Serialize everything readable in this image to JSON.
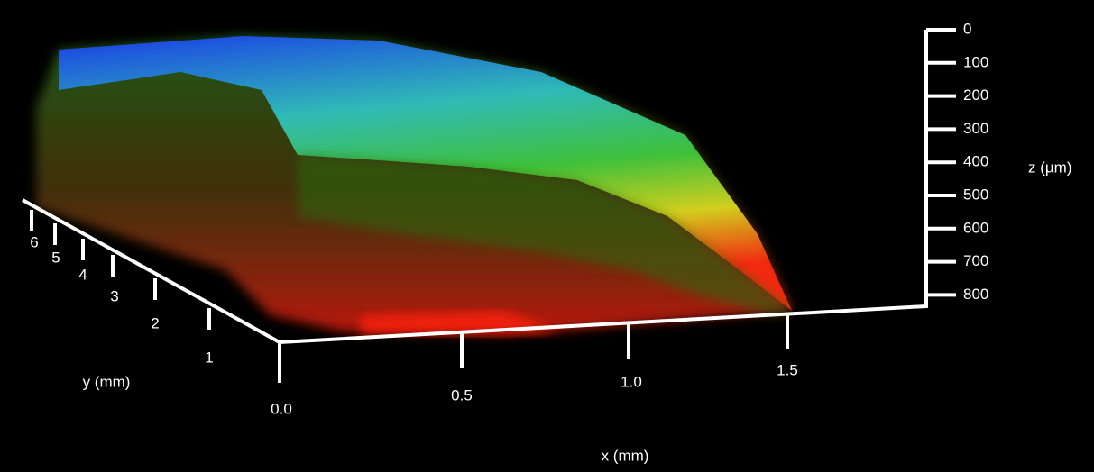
{
  "axes": {
    "x": {
      "label": "x (mm)",
      "ticks": [
        "0.0",
        "0.5",
        "1.0",
        "1.5"
      ]
    },
    "y": {
      "label": "y (mm)",
      "ticks": [
        "1",
        "2",
        "3",
        "4",
        "5",
        "6"
      ]
    },
    "z": {
      "label": "z (µm)",
      "ticks": [
        "0",
        "100",
        "200",
        "300",
        "400",
        "500",
        "600",
        "700",
        "800"
      ]
    }
  }
}
